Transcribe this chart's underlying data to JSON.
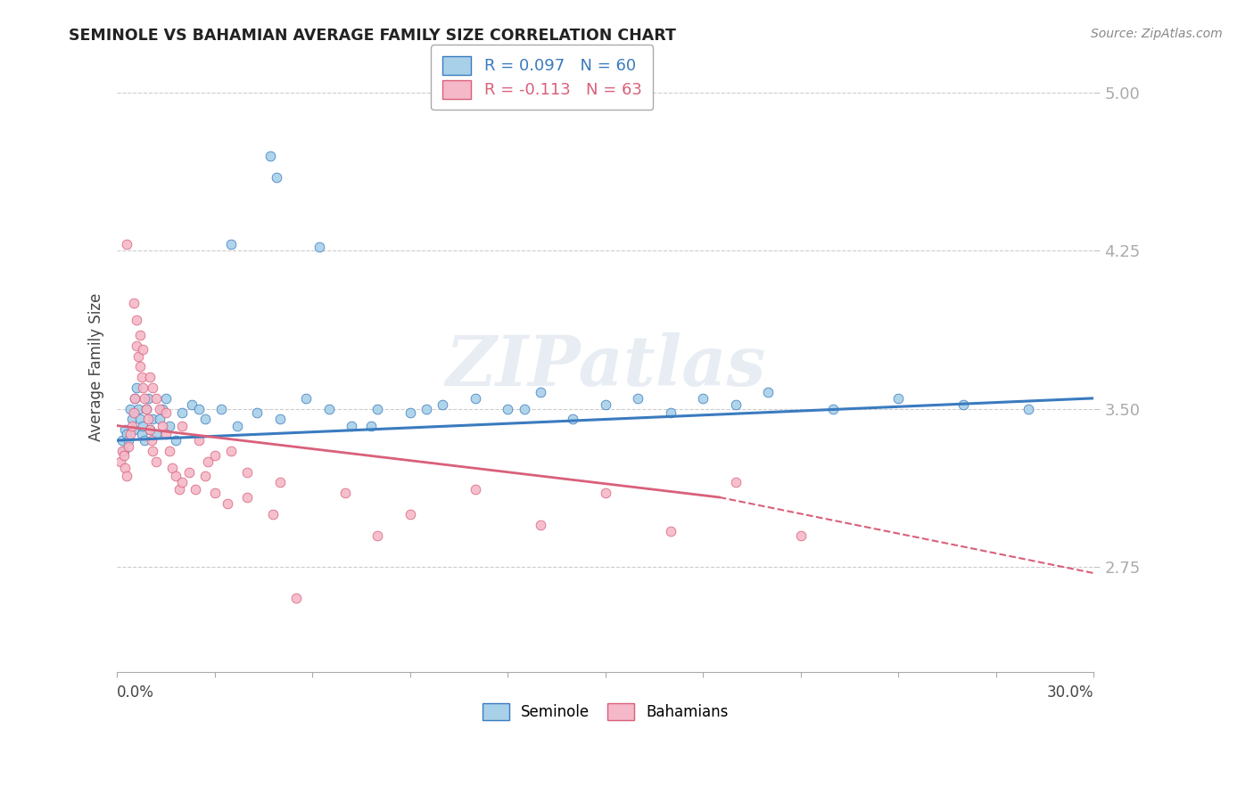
{
  "title": "SEMINOLE VS BAHAMIAN AVERAGE FAMILY SIZE CORRELATION CHART",
  "source_text": "Source: ZipAtlas.com",
  "ylabel": "Average Family Size",
  "yticks": [
    2.75,
    3.5,
    4.25,
    5.0
  ],
  "ytick_labels": [
    "2.75",
    "3.50",
    "4.25",
    "5.00"
  ],
  "xlim": [
    0.0,
    30.0
  ],
  "ylim": [
    2.25,
    5.15
  ],
  "seminole_R": 0.097,
  "seminole_N": 60,
  "bahamian_R": -0.113,
  "bahamian_N": 63,
  "seminole_color": "#a8d0e8",
  "bahamian_color": "#f5b8c8",
  "seminole_trend_color": "#3a7bbf",
  "bahamian_trend_color": "#d9607a",
  "watermark": "ZIPatlas",
  "seminole_x": [
    0.15,
    0.2,
    0.25,
    0.3,
    0.35,
    0.4,
    0.45,
    0.5,
    0.55,
    0.6,
    0.65,
    0.7,
    0.75,
    0.8,
    0.85,
    0.9,
    0.95,
    1.0,
    1.1,
    1.2,
    1.4,
    1.6,
    1.8,
    2.0,
    2.3,
    2.7,
    3.2,
    3.7,
    4.3,
    5.0,
    5.8,
    6.5,
    7.2,
    8.0,
    9.0,
    10.0,
    11.0,
    12.0,
    13.0,
    14.0,
    15.0,
    16.0,
    17.0,
    18.0,
    19.0,
    20.0,
    22.0,
    24.0,
    26.0,
    28.0,
    4.7,
    4.9,
    3.5,
    6.2,
    7.8,
    9.5,
    12.5,
    2.5,
    1.5,
    1.3
  ],
  "seminole_y": [
    3.35,
    3.3,
    3.4,
    3.38,
    3.35,
    3.5,
    3.45,
    3.4,
    3.55,
    3.6,
    3.5,
    3.45,
    3.38,
    3.42,
    3.35,
    3.5,
    3.55,
    3.4,
    3.45,
    3.38,
    3.5,
    3.42,
    3.35,
    3.48,
    3.52,
    3.45,
    3.5,
    3.42,
    3.48,
    3.45,
    3.55,
    3.5,
    3.42,
    3.5,
    3.48,
    3.52,
    3.55,
    3.5,
    3.58,
    3.45,
    3.52,
    3.55,
    3.48,
    3.55,
    3.52,
    3.58,
    3.5,
    3.55,
    3.52,
    3.5,
    4.7,
    4.6,
    4.28,
    4.27,
    3.42,
    3.5,
    3.5,
    3.5,
    3.55,
    3.45
  ],
  "bahamian_x": [
    0.1,
    0.15,
    0.2,
    0.25,
    0.3,
    0.35,
    0.4,
    0.45,
    0.5,
    0.55,
    0.6,
    0.65,
    0.7,
    0.75,
    0.8,
    0.85,
    0.9,
    0.95,
    1.0,
    1.05,
    1.1,
    1.2,
    1.3,
    1.4,
    1.5,
    1.6,
    1.7,
    1.8,
    1.9,
    2.0,
    2.2,
    2.4,
    2.7,
    3.0,
    3.4,
    4.0,
    4.8,
    0.3,
    0.5,
    0.6,
    0.7,
    0.8,
    1.0,
    1.1,
    1.2,
    1.5,
    2.0,
    2.5,
    3.0,
    4.0,
    5.0,
    7.0,
    9.0,
    11.0,
    13.0,
    15.0,
    17.0,
    19.0,
    21.0,
    8.0,
    3.5,
    2.8,
    5.5
  ],
  "bahamian_y": [
    3.25,
    3.3,
    3.28,
    3.22,
    3.18,
    3.32,
    3.38,
    3.42,
    3.48,
    3.55,
    3.8,
    3.75,
    3.7,
    3.65,
    3.6,
    3.55,
    3.5,
    3.45,
    3.4,
    3.35,
    3.3,
    3.25,
    3.5,
    3.42,
    3.38,
    3.3,
    3.22,
    3.18,
    3.12,
    3.15,
    3.2,
    3.12,
    3.18,
    3.1,
    3.05,
    3.08,
    3.0,
    4.28,
    4.0,
    3.92,
    3.85,
    3.78,
    3.65,
    3.6,
    3.55,
    3.48,
    3.42,
    3.35,
    3.28,
    3.2,
    3.15,
    3.1,
    3.0,
    3.12,
    2.95,
    3.1,
    2.92,
    3.15,
    2.9,
    2.9,
    3.3,
    3.25,
    2.6
  ],
  "bah_dash_start_x": 18.5,
  "sem_trend_x0": 0.0,
  "sem_trend_x1": 30.0,
  "sem_trend_y0": 3.35,
  "sem_trend_y1": 3.55,
  "bah_solid_x0": 0.0,
  "bah_solid_x1": 18.5,
  "bah_solid_y0": 3.42,
  "bah_solid_y1": 3.08,
  "bah_dash_x0": 18.5,
  "bah_dash_x1": 30.0,
  "bah_dash_y0": 3.08,
  "bah_dash_y1": 2.72
}
